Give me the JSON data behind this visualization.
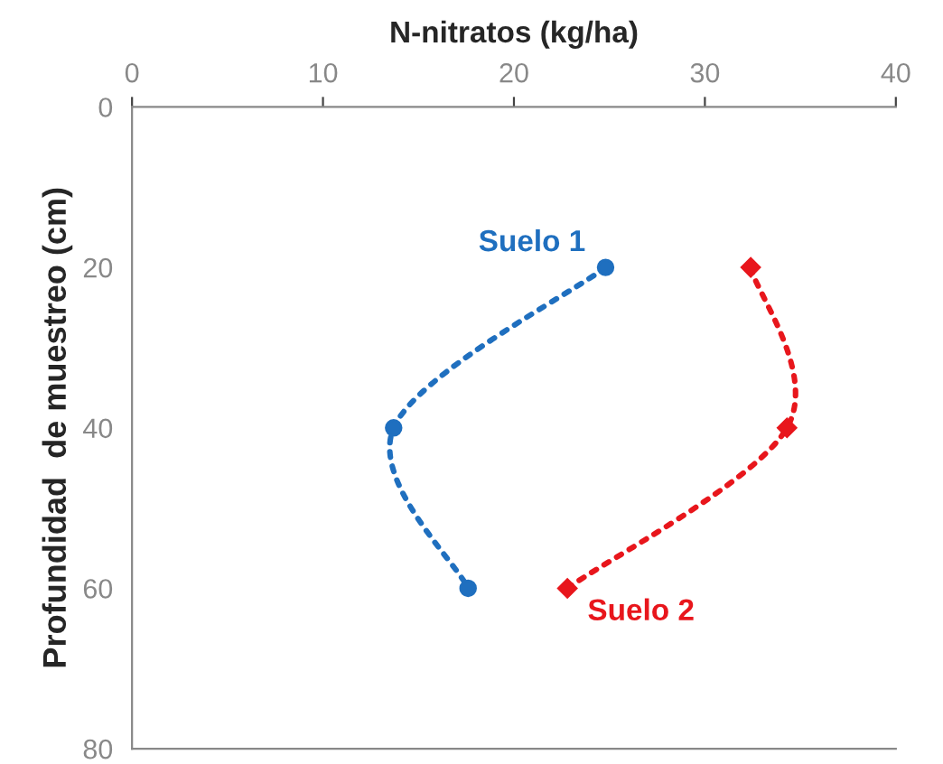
{
  "chart_data": {
    "type": "line",
    "xlabel": "N-nitratos (kg/ha)",
    "ylabel": "Profundidad  de muestreo (cm)",
    "xlim": [
      0,
      40
    ],
    "xticks": [
      0,
      10,
      20,
      30,
      40
    ],
    "ylim": [
      80,
      0
    ],
    "yticks": [
      0,
      20,
      40,
      60,
      80
    ],
    "grid": false,
    "line_style": "dotted",
    "series": [
      {
        "name": "Suelo 1",
        "color": "#1f6fbf",
        "marker": "circle",
        "x": [
          24.8,
          13.7,
          17.6
        ],
        "values": [
          20,
          40,
          60
        ]
      },
      {
        "name": "Suelo 2",
        "color": "#e8161c",
        "marker": "diamond",
        "x": [
          32.4,
          34.3,
          22.8
        ],
        "values": [
          20,
          40,
          60
        ]
      }
    ]
  }
}
